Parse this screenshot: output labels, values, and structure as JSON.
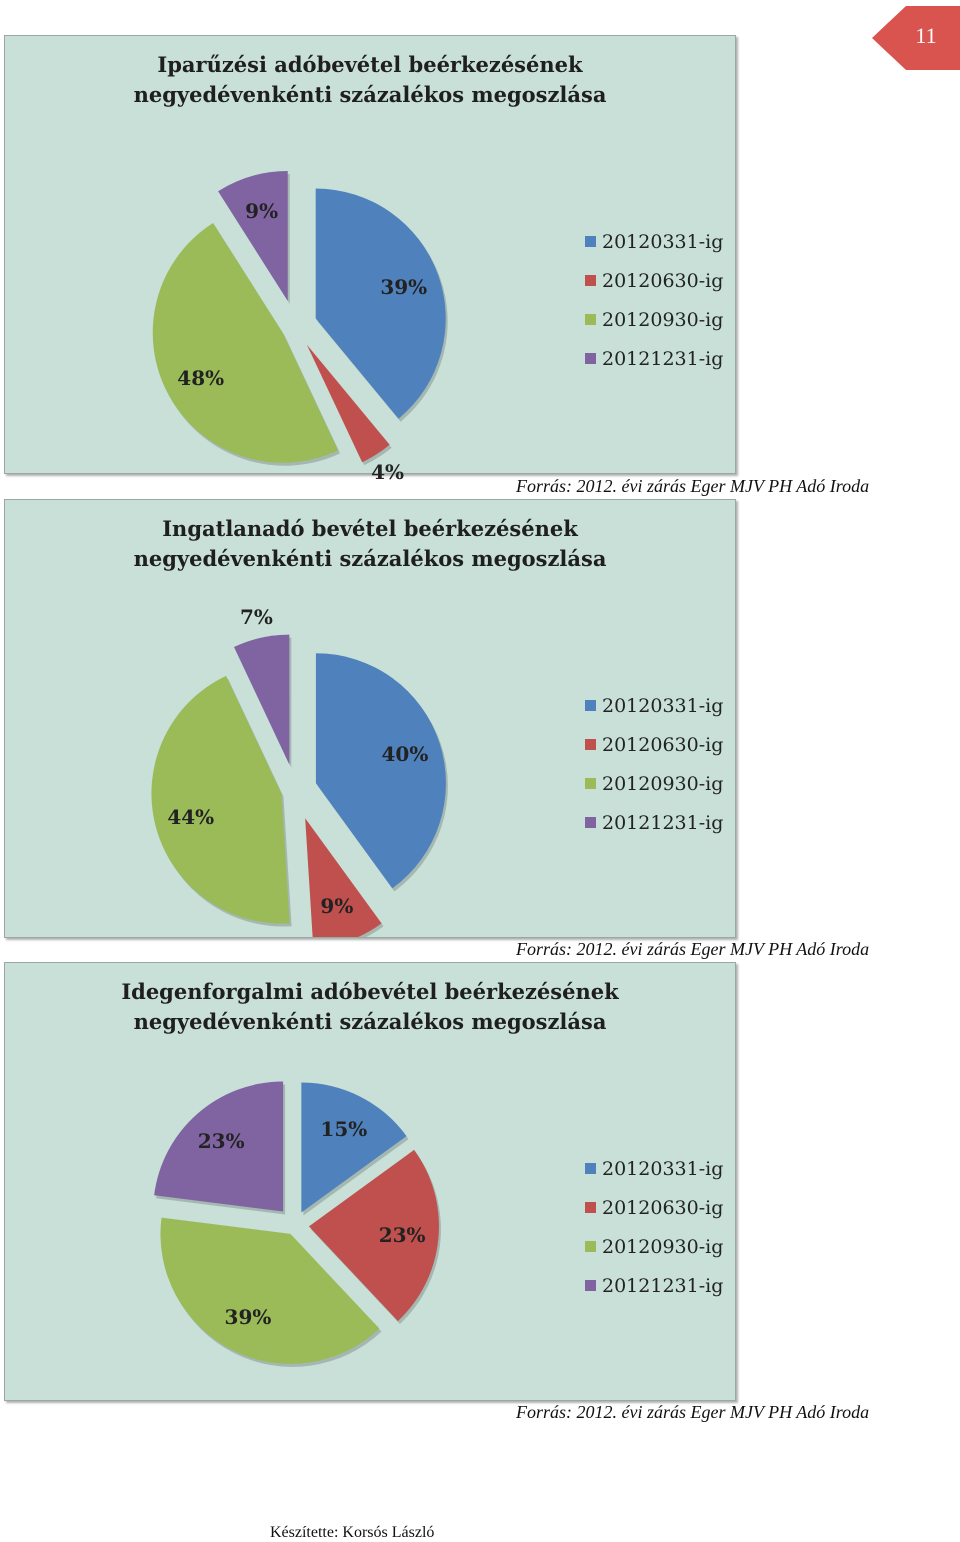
{
  "page_number": "11",
  "colors": {
    "blue": "#4f81bd",
    "red": "#c0504d",
    "green": "#9bbb59",
    "purple": "#8064a2",
    "bg": "#c8e0d8",
    "tab": "#d9534f"
  },
  "chart_data": [
    {
      "type": "pie",
      "title_lines": [
        "Iparűzési adóbevétel beérkezésének",
        "negyedévenkénti   százalékos megoszlása"
      ],
      "categories": [
        "20120331-ig",
        "20120630-ig",
        "20120930-ig",
        "20121231-ig"
      ],
      "values": [
        39,
        4,
        48,
        9
      ],
      "labels": [
        "39%",
        "4%",
        "48%",
        "9%"
      ],
      "legend_position": "right",
      "source": "Forrás: 2012. évi zárás Eger MJV PH Adó Iroda"
    },
    {
      "type": "pie",
      "title_lines": [
        "Ingatlanadó bevétel beérkezésének",
        "negyedévenkénti   százalékos megoszlása"
      ],
      "categories": [
        "20120331-ig",
        "20120630-ig",
        "20120930-ig",
        "20121231-ig"
      ],
      "values": [
        40,
        9,
        44,
        7
      ],
      "labels": [
        "40%",
        "9%",
        "44%",
        "7%"
      ],
      "legend_position": "right",
      "source": "Forrás: 2012. évi zárás Eger MJV PH Adó Iroda"
    },
    {
      "type": "pie",
      "title_lines": [
        "Idegenforgalmi adóbevétel beérkezésének",
        "negyedévenkénti   százalékos megoszlása"
      ],
      "categories": [
        "20120331-ig",
        "20120630-ig",
        "20120930-ig",
        "20121231-ig"
      ],
      "values": [
        15,
        23,
        39,
        23
      ],
      "labels": [
        "15%",
        "23%",
        "39%",
        "23%"
      ],
      "legend_position": "right",
      "source": "Forrás: 2012. évi zárás Eger MJV PH Adó Iroda"
    }
  ],
  "footer": "Készítette: Korsós László"
}
